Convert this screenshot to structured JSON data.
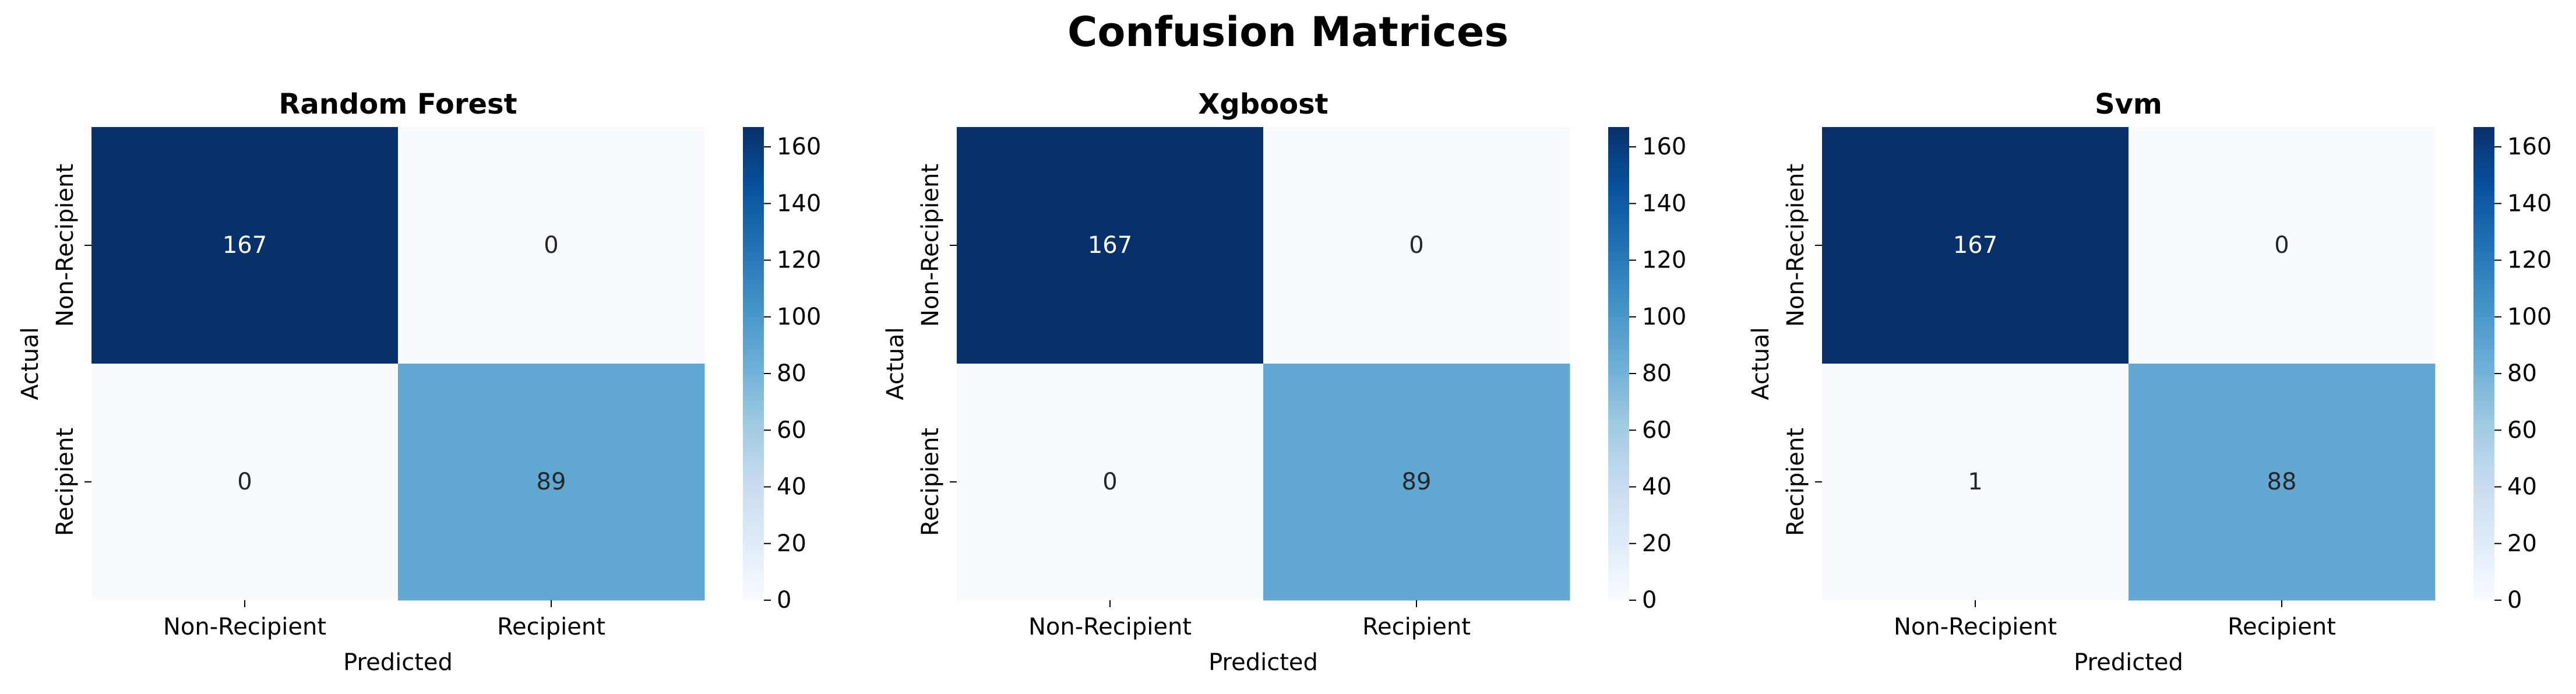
{
  "figure": {
    "title": "Confusion Matrices"
  },
  "colormap": {
    "name": "Blues",
    "low": "#f7fbff",
    "high": "#08306b"
  },
  "chart_data": [
    {
      "type": "heatmap",
      "title": "Random Forest",
      "xlabel": "Predicted",
      "ylabel": "Actual",
      "x_categories": [
        "Non-Recipient",
        "Recipient"
      ],
      "y_categories": [
        "Non-Recipient",
        "Recipient"
      ],
      "matrix": [
        [
          167,
          0
        ],
        [
          0,
          89
        ]
      ],
      "colorbar": {
        "min": 0,
        "max": 167,
        "ticks": [
          0,
          20,
          40,
          60,
          80,
          100,
          120,
          140,
          160
        ]
      }
    },
    {
      "type": "heatmap",
      "title": "Xgboost",
      "xlabel": "Predicted",
      "ylabel": "Actual",
      "x_categories": [
        "Non-Recipient",
        "Recipient"
      ],
      "y_categories": [
        "Non-Recipient",
        "Recipient"
      ],
      "matrix": [
        [
          167,
          0
        ],
        [
          0,
          89
        ]
      ],
      "colorbar": {
        "min": 0,
        "max": 167,
        "ticks": [
          0,
          20,
          40,
          60,
          80,
          100,
          120,
          140,
          160
        ]
      }
    },
    {
      "type": "heatmap",
      "title": "Svm",
      "xlabel": "Predicted",
      "ylabel": "Actual",
      "x_categories": [
        "Non-Recipient",
        "Recipient"
      ],
      "y_categories": [
        "Non-Recipient",
        "Recipient"
      ],
      "matrix": [
        [
          167,
          0
        ],
        [
          1,
          88
        ]
      ],
      "colorbar": {
        "min": 0,
        "max": 167,
        "ticks": [
          0,
          20,
          40,
          60,
          80,
          100,
          120,
          140,
          160
        ]
      }
    }
  ]
}
